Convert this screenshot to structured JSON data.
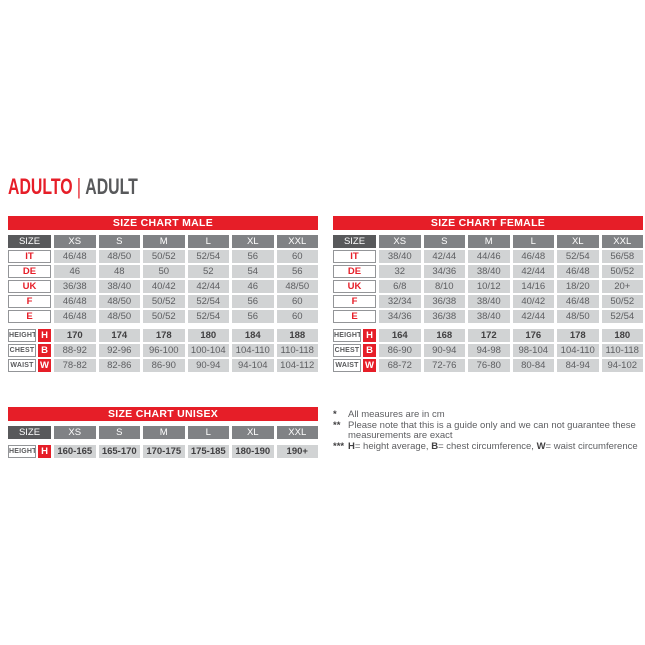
{
  "heading": {
    "primary": "ADULTO",
    "separator": "|",
    "secondary": "ADULT"
  },
  "colors": {
    "red": "#e61e28",
    "dark_gray": "#58595b",
    "mid_gray": "#808285",
    "cell_gray": "#d1d3d4"
  },
  "tables": {
    "male": {
      "title": "SIZE CHART MALE",
      "size_label": "SIZE",
      "columns": [
        "XS",
        "S",
        "M",
        "L",
        "XL",
        "XXL"
      ],
      "size_rows": [
        {
          "label": "IT",
          "values": [
            "46/48",
            "48/50",
            "50/52",
            "52/54",
            "56",
            "60"
          ]
        },
        {
          "label": "DE",
          "values": [
            "46",
            "48",
            "50",
            "52",
            "54",
            "56"
          ]
        },
        {
          "label": "UK",
          "values": [
            "36/38",
            "38/40",
            "40/42",
            "42/44",
            "46",
            "48/50"
          ]
        },
        {
          "label": "F",
          "values": [
            "46/48",
            "48/50",
            "50/52",
            "52/54",
            "56",
            "60"
          ]
        },
        {
          "label": "E",
          "values": [
            "46/48",
            "48/50",
            "50/52",
            "52/54",
            "56",
            "60"
          ]
        }
      ],
      "measure_rows": [
        {
          "label": "HEIGHT",
          "badge": "H",
          "bold": true,
          "values": [
            "170",
            "174",
            "178",
            "180",
            "184",
            "188"
          ]
        },
        {
          "label": "CHEST",
          "badge": "B",
          "bold": false,
          "values": [
            "88-92",
            "92-96",
            "96-100",
            "100-104",
            "104-110",
            "110-118"
          ]
        },
        {
          "label": "WAIST",
          "badge": "W",
          "bold": false,
          "values": [
            "78-82",
            "82-86",
            "86-90",
            "90-94",
            "94-104",
            "104-112"
          ]
        }
      ]
    },
    "female": {
      "title": "SIZE CHART FEMALE",
      "size_label": "SIZE",
      "columns": [
        "XS",
        "S",
        "M",
        "L",
        "XL",
        "XXL"
      ],
      "size_rows": [
        {
          "label": "IT",
          "values": [
            "38/40",
            "42/44",
            "44/46",
            "46/48",
            "52/54",
            "56/58"
          ]
        },
        {
          "label": "DE",
          "values": [
            "32",
            "34/36",
            "38/40",
            "42/44",
            "46/48",
            "50/52"
          ]
        },
        {
          "label": "UK",
          "values": [
            "6/8",
            "8/10",
            "10/12",
            "14/16",
            "18/20",
            "20+"
          ]
        },
        {
          "label": "F",
          "values": [
            "32/34",
            "36/38",
            "38/40",
            "40/42",
            "46/48",
            "50/52"
          ]
        },
        {
          "label": "E",
          "values": [
            "34/36",
            "36/38",
            "38/40",
            "42/44",
            "48/50",
            "52/54"
          ]
        }
      ],
      "measure_rows": [
        {
          "label": "HEIGHT",
          "badge": "H",
          "bold": true,
          "values": [
            "164",
            "168",
            "172",
            "176",
            "178",
            "180"
          ]
        },
        {
          "label": "CHEST",
          "badge": "B",
          "bold": false,
          "values": [
            "86-90",
            "90-94",
            "94-98",
            "98-104",
            "104-110",
            "110-118"
          ]
        },
        {
          "label": "WAIST",
          "badge": "W",
          "bold": false,
          "values": [
            "68-72",
            "72-76",
            "76-80",
            "80-84",
            "84-94",
            "94-102"
          ]
        }
      ]
    },
    "unisex": {
      "title": "SIZE CHART UNISEX",
      "size_label": "SIZE",
      "columns": [
        "XS",
        "S",
        "M",
        "L",
        "XL",
        "XXL"
      ],
      "size_rows": [],
      "measure_rows": [
        {
          "label": "HEIGHT",
          "badge": "H",
          "bold": true,
          "values": [
            "160-165",
            "165-170",
            "170-175",
            "175-185",
            "180-190",
            "190+"
          ]
        }
      ]
    }
  },
  "footnotes": [
    {
      "marker": "*",
      "segments": [
        {
          "text": "All measures are in cm",
          "bold": false
        }
      ]
    },
    {
      "marker": "**",
      "segments": [
        {
          "text": "Please note that this is a guide only and we can not guarantee these measurements are exact",
          "bold": false
        }
      ]
    },
    {
      "marker": "***",
      "segments": [
        {
          "text": "H",
          "bold": true
        },
        {
          "text": "= height average, ",
          "bold": false
        },
        {
          "text": "B",
          "bold": true
        },
        {
          "text": "= chest circumference, ",
          "bold": false
        },
        {
          "text": "W",
          "bold": true
        },
        {
          "text": "= waist circumference",
          "bold": false
        }
      ]
    }
  ]
}
